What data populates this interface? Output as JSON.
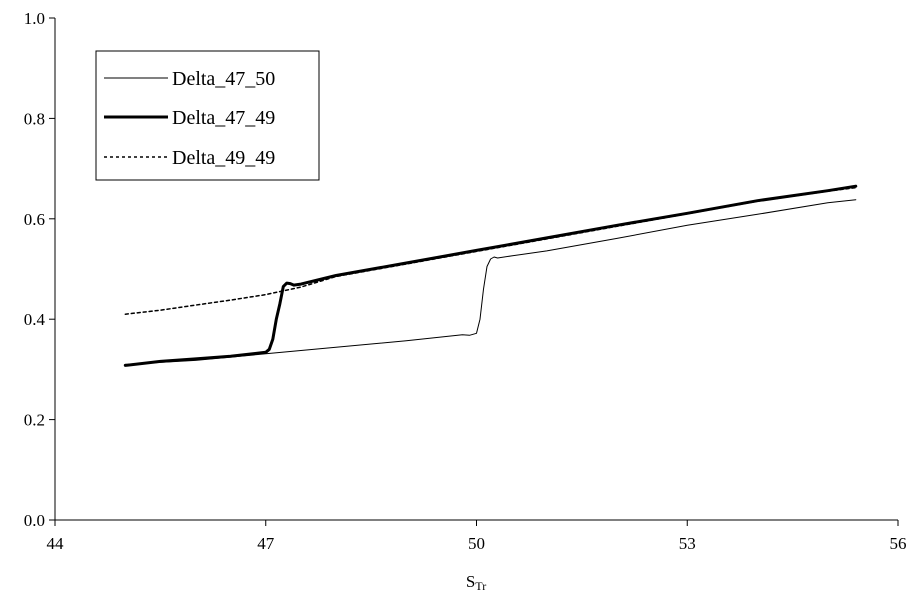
{
  "chart_data": {
    "type": "line",
    "title": "",
    "xlabel_main": "S",
    "xlabel_sub": "Tr",
    "ylabel": "",
    "xlim": [
      44,
      56
    ],
    "ylim": [
      0.0,
      1.0
    ],
    "xticks": [
      44,
      47,
      50,
      53,
      56
    ],
    "xtick_labels": [
      "44",
      "47",
      "50",
      "53",
      "56"
    ],
    "yticks": [
      0.0,
      0.2,
      0.4,
      0.6,
      0.8,
      1.0
    ],
    "ytick_labels": [
      "0.0",
      "0.2",
      "0.4",
      "0.6",
      "0.8",
      "1.0"
    ],
    "grid": false,
    "legend_position": "top-left",
    "series": [
      {
        "name": "Delta_47_50",
        "style": "thin",
        "color": "#000000",
        "x": [
          45.0,
          46.0,
          47.0,
          48.0,
          49.0,
          49.8,
          49.9,
          50.0,
          50.05,
          50.1,
          50.15,
          50.2,
          50.25,
          50.3,
          50.5,
          51.0,
          52.0,
          53.0,
          54.0,
          55.0,
          55.4
        ],
        "y": [
          0.31,
          0.318,
          0.331,
          0.344,
          0.357,
          0.369,
          0.368,
          0.372,
          0.4,
          0.46,
          0.505,
          0.52,
          0.524,
          0.522,
          0.526,
          0.536,
          0.561,
          0.587,
          0.609,
          0.632,
          0.638
        ]
      },
      {
        "name": "Delta_47_49",
        "style": "thick",
        "color": "#000000",
        "x": [
          45.0,
          45.5,
          46.0,
          46.5,
          47.0,
          47.05,
          47.1,
          47.15,
          47.2,
          47.25,
          47.3,
          47.35,
          47.4,
          47.5,
          48.0,
          49.0,
          50.0,
          51.0,
          52.0,
          53.0,
          54.0,
          55.0,
          55.4
        ],
        "y": [
          0.308,
          0.316,
          0.321,
          0.326,
          0.334,
          0.34,
          0.36,
          0.4,
          0.43,
          0.465,
          0.472,
          0.471,
          0.468,
          0.47,
          0.487,
          0.512,
          0.537,
          0.562,
          0.587,
          0.611,
          0.636,
          0.656,
          0.665
        ]
      },
      {
        "name": "Delta_49_49",
        "style": "dotted",
        "color": "#000000",
        "x": [
          45.0,
          45.5,
          46.0,
          46.5,
          47.0,
          47.5,
          48.0,
          49.0,
          50.0,
          51.0,
          52.0,
          53.0,
          54.0,
          55.0,
          55.4
        ],
        "y": [
          0.41,
          0.418,
          0.428,
          0.438,
          0.449,
          0.464,
          0.485,
          0.51,
          0.535,
          0.56,
          0.585,
          0.61,
          0.635,
          0.655,
          0.662
        ]
      }
    ]
  }
}
